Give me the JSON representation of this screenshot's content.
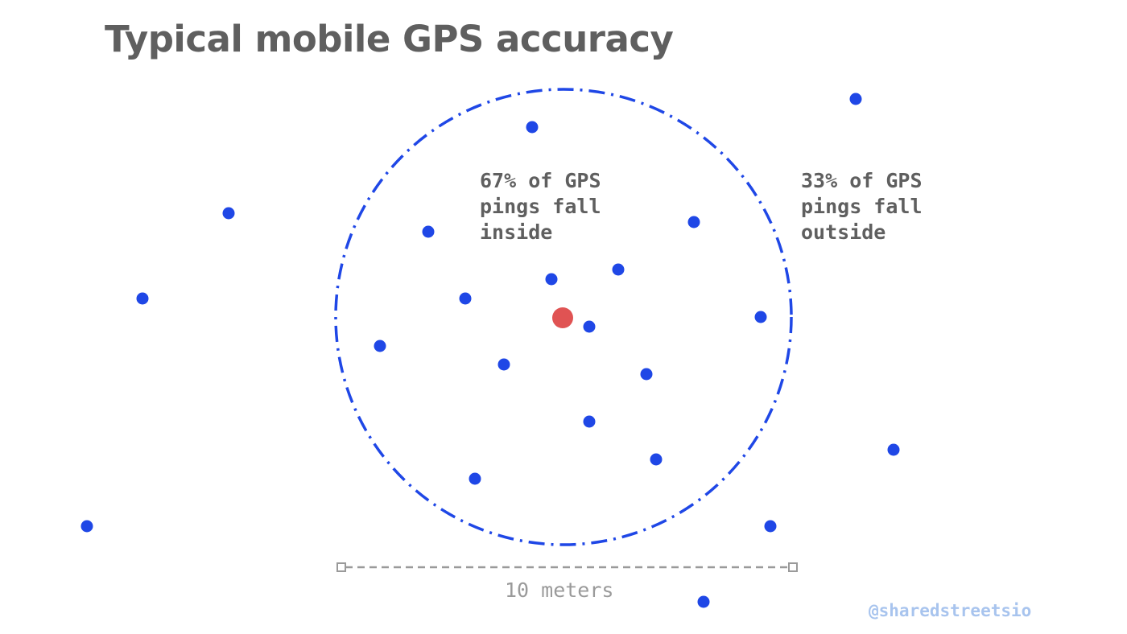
{
  "title": "Typical mobile GPS accuracy",
  "inside_label": [
    "67% of GPS",
    "pings fall",
    "inside"
  ],
  "outside_label": [
    "33% of GPS",
    "pings fall",
    "outside"
  ],
  "scale_label": "10 meters",
  "credit": "@sharedstreetsio",
  "colors": {
    "ping": "#1f47e6",
    "true_location": "#e05353",
    "accuracy_circle": "#1f47e6",
    "scale_bar": "#9a9a9a",
    "text": "#5f5f5f",
    "credit": "#a8c4ee"
  },
  "markers": {
    "true_location": "red-dot",
    "ping": "blue-dot"
  }
}
